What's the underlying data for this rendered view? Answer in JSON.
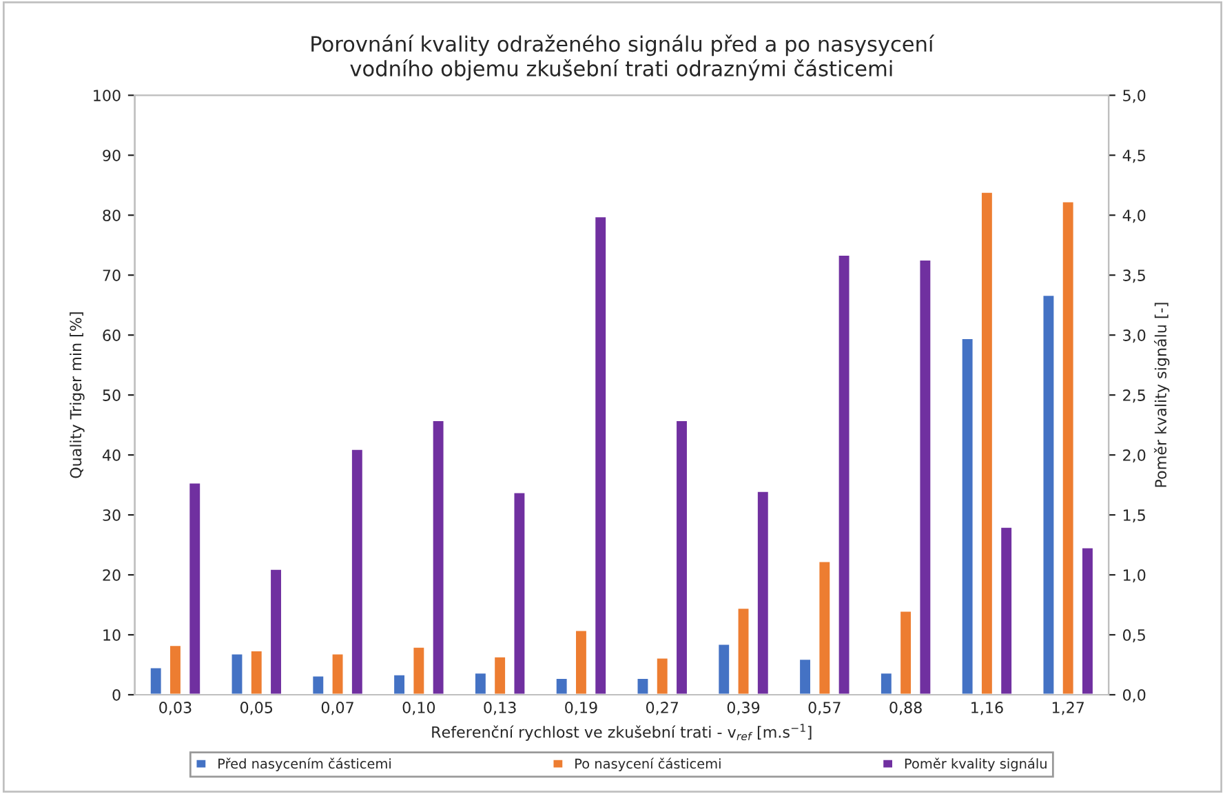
{
  "chart_data": {
    "type": "bar",
    "title": "Porovnání kvality odraženého signálu před a po nasysycení\nvodního objemu zkušební trati odraznými částicemi",
    "xlabel": "Referenční rychlost ve zkušební trati - v$_{ref}$ [m.s$^{−1}$]",
    "ylabel": "Quality Triger min [%]",
    "y2label": "Poměr kvality signálu [-]",
    "categories": [
      "0,03",
      "0,05",
      "0,07",
      "0,10",
      "0,13",
      "0,19",
      "0,27",
      "0,39",
      "0,57",
      "0,88",
      "1,16",
      "1,27"
    ],
    "series": [
      {
        "name": "Před nasycením částicemi",
        "color": "#4472c4",
        "values": [
          4.6,
          6.9,
          3.2,
          3.4,
          3.7,
          2.8,
          2.8,
          8.5,
          6.0,
          3.7,
          59.5,
          66.7
        ]
      },
      {
        "name": "Po nasycení částicemi",
        "color": "#ed7d31",
        "values": [
          8.3,
          7.4,
          6.9,
          8.0,
          6.4,
          10.8,
          6.2,
          14.5,
          22.3,
          14.0,
          83.9,
          82.3
        ]
      },
      {
        "name": "Poměr kvality signálu",
        "color": "#7030a0",
        "axis": "y2",
        "values": [
          1.77,
          1.05,
          2.05,
          2.29,
          1.69,
          3.99,
          2.29,
          1.7,
          3.67,
          3.63,
          1.4,
          1.23
        ]
      }
    ],
    "ylim": [
      0,
      100
    ],
    "yticks": [
      0,
      10,
      20,
      30,
      40,
      50,
      60,
      70,
      80,
      90,
      100
    ],
    "y2lim": [
      0,
      5
    ],
    "y2ticks": [
      {
        "value": 0,
        "label": "0,0"
      },
      {
        "value": 0.5,
        "label": "0,5"
      },
      {
        "value": 1,
        "label": "1,0"
      },
      {
        "value": 1.5,
        "label": "1,5"
      },
      {
        "value": 2,
        "label": "2,0"
      },
      {
        "value": 2.5,
        "label": "2,5"
      },
      {
        "value": 3,
        "label": "3,0"
      },
      {
        "value": 3.5,
        "label": "3,5"
      },
      {
        "value": 4,
        "label": "4,0"
      },
      {
        "value": 4.5,
        "label": "4,5"
      },
      {
        "value": 5,
        "label": "5,0"
      }
    ],
    "grid": false,
    "legend": "bottom"
  }
}
